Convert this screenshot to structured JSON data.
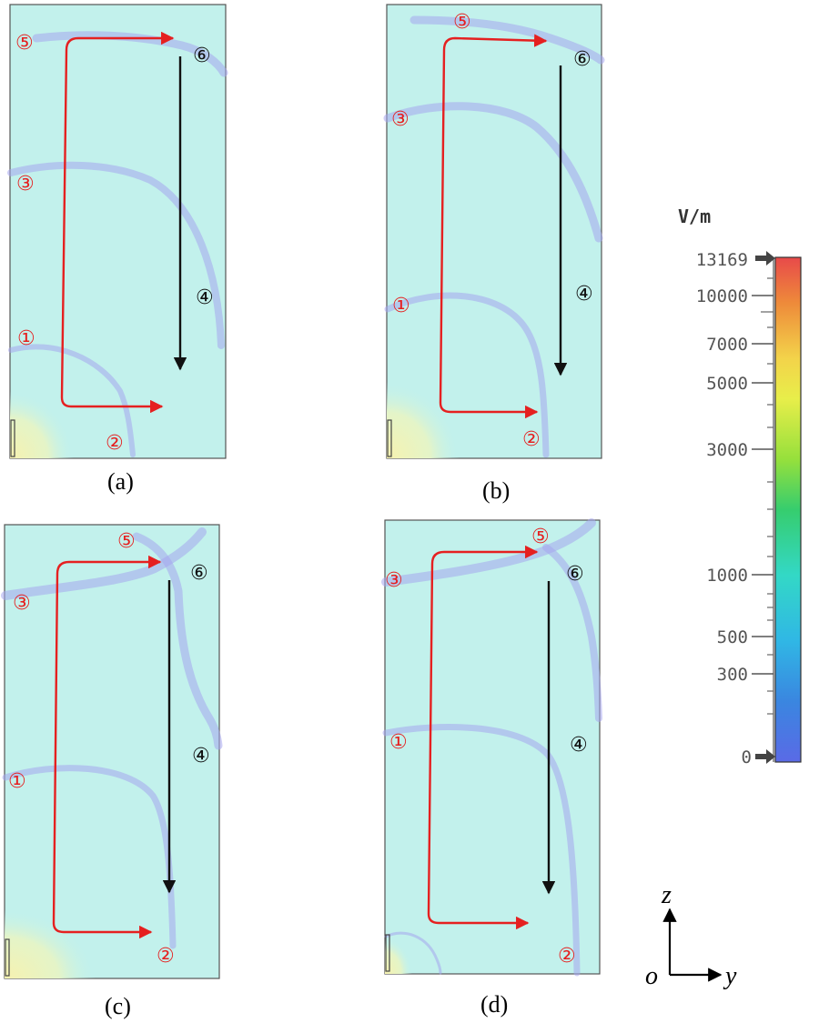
{
  "panels": [
    {
      "caption": "(a)",
      "marker_labels": [
        "⑤",
        "⑥",
        "③",
        "④",
        "①",
        "②"
      ]
    },
    {
      "caption": "(b)",
      "marker_labels": [
        "⑤",
        "⑥",
        "③",
        "④",
        "①",
        "②"
      ]
    },
    {
      "caption": "(c)",
      "marker_labels": [
        "⑤",
        "⑥",
        "③",
        "④",
        "①",
        "②"
      ]
    },
    {
      "caption": "(d)",
      "marker_labels": [
        "⑤",
        "⑥",
        "③",
        "④",
        "①",
        "②"
      ]
    }
  ],
  "colorbar": {
    "unit": "V/m",
    "ticks": [
      "13169",
      "10000",
      "7000",
      "5000",
      "3000",
      "1000",
      "500",
      "300",
      "0"
    ],
    "colors": [
      "#e84a4a",
      "#ee8a3a",
      "#f3d34a",
      "#e8ee4a",
      "#96e03c",
      "#36cd6e",
      "#33d8c6",
      "#30b7e5",
      "#3a86e0",
      "#5a6ae6"
    ]
  },
  "axes": {
    "vertical": "z",
    "horizontal": "y",
    "origin": "o"
  },
  "colors": {
    "field_bg": "#c2f1ec",
    "red_arrow": "#e52020",
    "black_arrow": "#111111",
    "band": "#a6a6ee"
  }
}
